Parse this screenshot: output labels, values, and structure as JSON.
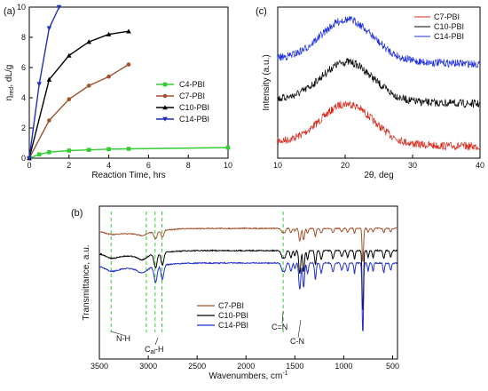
{
  "chart_data": [
    {
      "panel": "(a)",
      "type": "line",
      "xlabel": "Reaction Time, hrs",
      "ylabel_main": "η",
      "ylabel_sub": "red",
      "ylabel_rest": ", dL/g",
      "xlim": [
        0,
        10
      ],
      "ylim": [
        0,
        10
      ],
      "xticks": [
        0,
        2,
        4,
        6,
        8,
        10
      ],
      "yticks": [
        0,
        2,
        4,
        6,
        8,
        10
      ],
      "legend_position": "right",
      "series": [
        {
          "name": "C4-PBI",
          "color": "#33cc33",
          "marker": "square",
          "x": [
            0,
            0.5,
            1,
            2,
            3,
            4,
            5,
            10
          ],
          "y": [
            0,
            0.25,
            0.4,
            0.5,
            0.55,
            0.6,
            0.62,
            0.7
          ]
        },
        {
          "name": "C7-PBI",
          "color": "#a0522d",
          "marker": "circle",
          "x": [
            0,
            1,
            2,
            3,
            4,
            5
          ],
          "y": [
            0,
            2.5,
            3.9,
            4.8,
            5.4,
            6.2
          ]
        },
        {
          "name": "C10-PBI",
          "color": "#000000",
          "marker": "triangle-up",
          "x": [
            0,
            1,
            2,
            3,
            4,
            5
          ],
          "y": [
            0,
            5.2,
            6.8,
            7.7,
            8.2,
            8.4
          ]
        },
        {
          "name": "C14-PBI",
          "color": "#1f2fb8",
          "marker": "triangle-down",
          "x": [
            0,
            0.5,
            1,
            1.5
          ],
          "y": [
            0,
            4.9,
            8.6,
            10.0
          ]
        }
      ]
    },
    {
      "panel": "(c)",
      "type": "line",
      "xlabel": "2θ, deg",
      "ylabel": "Intensity (a.u.)",
      "xlim": [
        10,
        40
      ],
      "xticks": [
        10,
        20,
        30,
        40
      ],
      "legend_position": "top-right",
      "series": [
        {
          "name": "C7-PBI",
          "color": "#d62718",
          "peak_x": 20,
          "offset": 0.0
        },
        {
          "name": "C10-PBI",
          "color": "#000000",
          "peak_x": 20,
          "offset": 1.0
        },
        {
          "name": "C14-PBI",
          "color": "#1f2fe0",
          "peak_x": 20,
          "offset": 1.85
        }
      ]
    },
    {
      "panel": "(b)",
      "type": "line",
      "xlabel": "Wavenumbers, cm",
      "xlabel_sup": "-1",
      "ylabel": "Transmittance, a.u.",
      "xlim": [
        3500,
        450
      ],
      "xticks": [
        3500,
        3000,
        2500,
        2000,
        1500,
        1000,
        500
      ],
      "legend_position": "center",
      "series": [
        {
          "name": "C7-PBI",
          "color": "#a0522d"
        },
        {
          "name": "C10-PBI",
          "color": "#000000"
        },
        {
          "name": "C14-PBI",
          "color": "#1f2fd0"
        }
      ],
      "annotations": [
        {
          "label": "N-H",
          "x": 3380
        },
        {
          "label_main": "C",
          "label_sub": "al",
          "label_rest": "-H",
          "x": 2900
        },
        {
          "label": "C=N",
          "x": 1620
        },
        {
          "label": "C-N",
          "x": 1440
        }
      ],
      "guide_lines": [
        3380,
        3020,
        2930,
        2860,
        1620
      ]
    }
  ]
}
